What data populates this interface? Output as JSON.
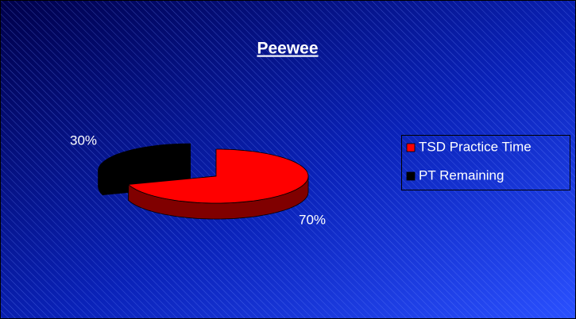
{
  "chart_data": {
    "type": "pie",
    "title": "Peewee",
    "categories": [
      "TSD Practice Time",
      "PT Remaining"
    ],
    "values": [
      70,
      30
    ],
    "value_labels": [
      "70%",
      "30%"
    ],
    "colors": [
      "#ff0000",
      "#000000"
    ],
    "legend": "right"
  }
}
